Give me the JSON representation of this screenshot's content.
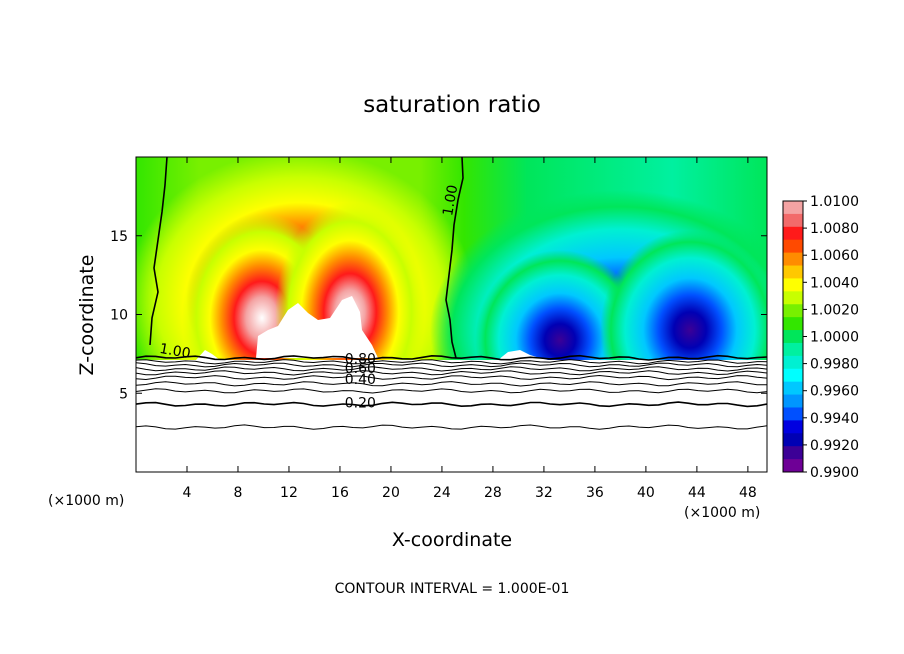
{
  "chart_data": {
    "type": "heatmap",
    "title": "saturation ratio",
    "xlabel": "X-coordinate",
    "ylabel": "Z-coordinate",
    "x_unit_left": "(×1000 m)",
    "x_unit_right": "(×1000 m)",
    "footer": "CONTOUR INTERVAL = 1.000E-01",
    "xlim": [
      0,
      49.5
    ],
    "ylim": [
      0,
      20
    ],
    "xticks": [
      4,
      8,
      12,
      16,
      20,
      24,
      28,
      32,
      36,
      40,
      44,
      48
    ],
    "yticks": [
      5,
      10,
      15
    ],
    "colorbar": {
      "range": [
        0.99,
        1.01
      ],
      "labels": [
        "1.0100",
        "1.0080",
        "1.0060",
        "1.0040",
        "1.0020",
        "1.0000",
        "0.9980",
        "0.9960",
        "0.9940",
        "0.9920",
        "0.9900"
      ],
      "colors": [
        "#f4a3a3",
        "#f26a6a",
        "#ff1a1a",
        "#ff4a00",
        "#ff8c00",
        "#ffc800",
        "#ffff00",
        "#c8ff00",
        "#78f000",
        "#33e600",
        "#00e65a",
        "#00f0a0",
        "#00f0d2",
        "#00ffff",
        "#00c8ff",
        "#0096ff",
        "#0050ff",
        "#0000e0",
        "#0000b4",
        "#3c0096",
        "#6e0096"
      ]
    },
    "contour_labels": [
      {
        "text": "1.00",
        "x": 3.0,
        "z": 7.4,
        "rotate": 10
      },
      {
        "text": "1.00",
        "x": 25.0,
        "z": 17.2,
        "rotate": -80
      },
      {
        "text": "0.80",
        "x": 17.6,
        "z": 6.9,
        "rotate": 0
      },
      {
        "text": "0.60",
        "x": 17.6,
        "z": 6.3,
        "rotate": 0
      },
      {
        "text": "0.40",
        "x": 17.6,
        "z": 5.6,
        "rotate": 0
      },
      {
        "text": "0.20",
        "x": 17.6,
        "z": 4.1,
        "rotate": 0
      }
    ],
    "contour_levels_below_cloud": [
      0.2,
      0.3,
      0.4,
      0.5,
      0.6,
      0.7,
      0.8,
      0.9
    ]
  }
}
